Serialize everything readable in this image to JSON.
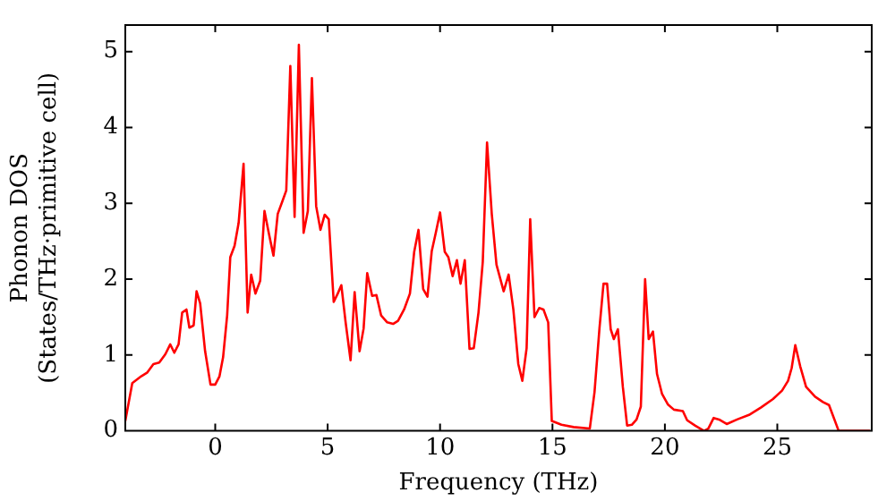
{
  "chart_data": {
    "type": "line",
    "xlabel": "Frequency (THz)",
    "ylabel": "Phonon DOS\n(States/THz·primitive cell)",
    "xlim": [
      -4,
      29.2
    ],
    "xticks": [
      0,
      5,
      10,
      15,
      20,
      25
    ],
    "ylim": [
      0,
      5.35
    ],
    "yticks": [
      0,
      1,
      2,
      3,
      4,
      5
    ],
    "grid": false,
    "legend": false,
    "marker": "none",
    "line_style": "solid",
    "series": [
      {
        "color": "#ff0000",
        "x": [
          -4.0,
          -3.69,
          -3.29,
          -3.02,
          -2.75,
          -2.49,
          -2.22,
          -2.0,
          -1.82,
          -1.63,
          -1.47,
          -1.28,
          -1.15,
          -0.96,
          -0.83,
          -0.67,
          -0.45,
          -0.21,
          0,
          0.19,
          0.35,
          0.53,
          0.67,
          0.86,
          1.04,
          1.26,
          1.44,
          1.6,
          1.79,
          2.0,
          2.19,
          2.38,
          2.59,
          2.78,
          2.99,
          3.16,
          3.34,
          3.53,
          3.72,
          3.93,
          4.12,
          4.3,
          4.49,
          4.68,
          4.87,
          5.05,
          5.27,
          5.45,
          5.61,
          5.8,
          6.02,
          6.2,
          6.42,
          6.6,
          6.76,
          6.98,
          7.17,
          7.38,
          7.65,
          7.91,
          8.13,
          8.4,
          8.66,
          8.85,
          9.04,
          9.25,
          9.44,
          9.63,
          9.81,
          10.0,
          10.21,
          10.37,
          10.56,
          10.75,
          10.91,
          11.1,
          11.31,
          11.5,
          11.71,
          11.9,
          12.09,
          12.3,
          12.51,
          12.83,
          13.05,
          13.26,
          13.48,
          13.66,
          13.85,
          14.01,
          14.2,
          14.41,
          14.6,
          14.81,
          14.97,
          15.4,
          15.94,
          16.66,
          16.87,
          17.09,
          17.27,
          17.43,
          17.59,
          17.73,
          17.91,
          18.13,
          18.32,
          18.53,
          18.74,
          18.93,
          19.12,
          19.28,
          19.47,
          19.65,
          19.87,
          20.13,
          20.4,
          20.8,
          20.99,
          21.34,
          21.74,
          21.93,
          22.17,
          22.41,
          22.75,
          23.21,
          23.74,
          24.28,
          24.81,
          25.21,
          25.48,
          25.64,
          25.8,
          26.02,
          26.28,
          26.68,
          27.03,
          27.3,
          27.73,
          29.12
        ],
        "values": [
          0.13,
          0.63,
          0.72,
          0.77,
          0.88,
          0.9,
          1.01,
          1.14,
          1.03,
          1.14,
          1.56,
          1.6,
          1.36,
          1.39,
          1.84,
          1.68,
          1.05,
          0.61,
          0.61,
          0.72,
          0.97,
          1.52,
          2.29,
          2.44,
          2.74,
          3.52,
          1.56,
          2.06,
          1.81,
          1.98,
          2.9,
          2.61,
          2.31,
          2.86,
          3.03,
          3.17,
          4.81,
          2.82,
          5.09,
          2.61,
          2.9,
          4.65,
          2.96,
          2.65,
          2.85,
          2.79,
          1.7,
          1.81,
          1.92,
          1.43,
          0.93,
          1.83,
          1.05,
          1.35,
          2.08,
          1.78,
          1.79,
          1.52,
          1.43,
          1.41,
          1.45,
          1.6,
          1.81,
          2.36,
          2.65,
          1.87,
          1.77,
          2.37,
          2.61,
          2.88,
          2.36,
          2.29,
          2.04,
          2.25,
          1.94,
          2.25,
          1.08,
          1.09,
          1.56,
          2.23,
          3.8,
          2.86,
          2.19,
          1.84,
          2.06,
          1.6,
          0.88,
          0.66,
          1.09,
          2.79,
          1.5,
          1.62,
          1.6,
          1.43,
          0.13,
          0.08,
          0.05,
          0.03,
          0.51,
          1.35,
          1.94,
          1.94,
          1.34,
          1.21,
          1.34,
          0.58,
          0.07,
          0.08,
          0.15,
          0.32,
          2.0,
          1.21,
          1.31,
          0.75,
          0.49,
          0.35,
          0.28,
          0.26,
          0.14,
          0.07,
          0,
          0.03,
          0.17,
          0.15,
          0.09,
          0.15,
          0.21,
          0.31,
          0.42,
          0.53,
          0.66,
          0.83,
          1.13,
          0.85,
          0.58,
          0.45,
          0.38,
          0.34,
          0,
          0
        ]
      }
    ]
  }
}
